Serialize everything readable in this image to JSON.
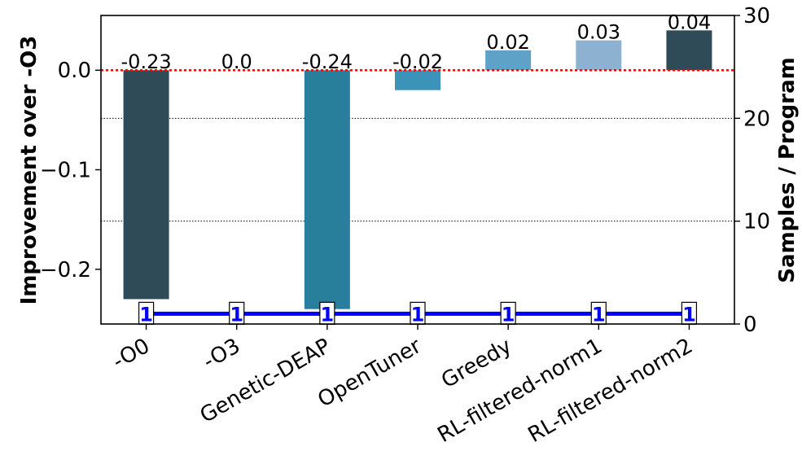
{
  "chart_data": {
    "type": "bar",
    "categories": [
      "-O0",
      "-O3",
      "Genetic-DEAP",
      "OpenTuner",
      "Greedy",
      "RL-filtered-norm1",
      "RL-filtered-norm2"
    ],
    "values": [
      -0.23,
      0.0,
      -0.24,
      -0.02,
      0.02,
      0.03,
      0.04
    ],
    "value_labels": [
      "-0.23",
      "0.0",
      "-0.24",
      "-0.02",
      "0.02",
      "0.03",
      "0.04"
    ],
    "bar_colors": [
      "#2F4B57",
      "#2F4B57",
      "#277F9C",
      "#3C93B9",
      "#5EA2C7",
      "#8DB2D1",
      "#2F4B57"
    ],
    "ylabel": "Improvement over -O3",
    "ylim": [
      -0.255,
      0.055
    ],
    "yticks": [
      0.0,
      -0.1,
      -0.2
    ],
    "ytick_labels": [
      "0.0",
      "−0.1",
      "−0.2"
    ],
    "y2label": "Samples / Program",
    "y2lim": [
      0,
      30
    ],
    "y2ticks": [
      0,
      10,
      20,
      30
    ],
    "y2tick_labels": [
      "0",
      "10",
      "20",
      "30"
    ],
    "samples_series": {
      "values": [
        1,
        1,
        1,
        1,
        1,
        1,
        1
      ],
      "labels": [
        "1",
        "1",
        "1",
        "1",
        "1",
        "1",
        "1"
      ],
      "color": "#0000FF"
    },
    "reference_line": {
      "y": 0.0,
      "color": "#FF0000",
      "style": "dotted"
    },
    "grid": "horizontal dotted at right-axis ticks",
    "legend": "none"
  }
}
